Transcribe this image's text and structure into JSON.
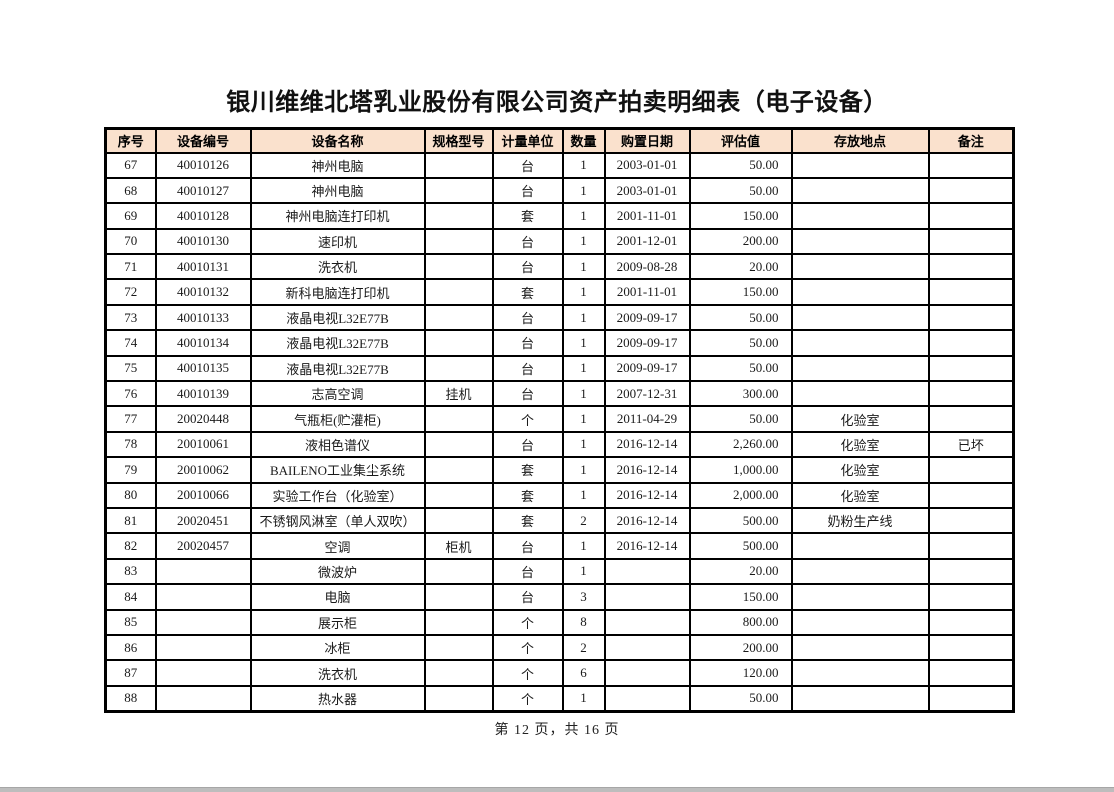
{
  "page": {
    "title": "银川维维北塔乳业股份有限公司资产拍卖明细表（电子设备）",
    "footer": "第 12 页，共 16 页"
  },
  "colors": {
    "header_bg": "#FAE1CD",
    "border": "#000000",
    "text": "#1A1A1A",
    "bottom_bar": "#BDBDBD"
  },
  "table": {
    "headers": [
      "序号",
      "设备编号",
      "设备名称",
      "规格型号",
      "计量单位",
      "数量",
      "购置日期",
      "评估值",
      "存放地点",
      "备注"
    ],
    "rows": [
      [
        "67",
        "40010126",
        "神州电脑",
        "",
        "台",
        "1",
        "2003-01-01",
        "50.00",
        "",
        ""
      ],
      [
        "68",
        "40010127",
        "神州电脑",
        "",
        "台",
        "1",
        "2003-01-01",
        "50.00",
        "",
        ""
      ],
      [
        "69",
        "40010128",
        "神州电脑连打印机",
        "",
        "套",
        "1",
        "2001-11-01",
        "150.00",
        "",
        ""
      ],
      [
        "70",
        "40010130",
        "速印机",
        "",
        "台",
        "1",
        "2001-12-01",
        "200.00",
        "",
        ""
      ],
      [
        "71",
        "40010131",
        "洗衣机",
        "",
        "台",
        "1",
        "2009-08-28",
        "20.00",
        "",
        ""
      ],
      [
        "72",
        "40010132",
        "新科电脑连打印机",
        "",
        "套",
        "1",
        "2001-11-01",
        "150.00",
        "",
        ""
      ],
      [
        "73",
        "40010133",
        "液晶电视L32E77B",
        "",
        "台",
        "1",
        "2009-09-17",
        "50.00",
        "",
        ""
      ],
      [
        "74",
        "40010134",
        "液晶电视L32E77B",
        "",
        "台",
        "1",
        "2009-09-17",
        "50.00",
        "",
        ""
      ],
      [
        "75",
        "40010135",
        "液晶电视L32E77B",
        "",
        "台",
        "1",
        "2009-09-17",
        "50.00",
        "",
        ""
      ],
      [
        "76",
        "40010139",
        "志高空调",
        "挂机",
        "台",
        "1",
        "2007-12-31",
        "300.00",
        "",
        ""
      ],
      [
        "77",
        "20020448",
        "气瓶柜(贮灌柜)",
        "",
        "个",
        "1",
        "2011-04-29",
        "50.00",
        "化验室",
        ""
      ],
      [
        "78",
        "20010061",
        "液相色谱仪",
        "",
        "台",
        "1",
        "2016-12-14",
        "2,260.00",
        "化验室",
        "已坏"
      ],
      [
        "79",
        "20010062",
        "BAILENO工业集尘系统",
        "",
        "套",
        "1",
        "2016-12-14",
        "1,000.00",
        "化验室",
        ""
      ],
      [
        "80",
        "20010066",
        "实验工作台（化验室）",
        "",
        "套",
        "1",
        "2016-12-14",
        "2,000.00",
        "化验室",
        ""
      ],
      [
        "81",
        "20020451",
        "不锈钢风淋室（单人双吹）",
        "",
        "套",
        "2",
        "2016-12-14",
        "500.00",
        "奶粉生产线",
        ""
      ],
      [
        "82",
        "20020457",
        "空调",
        "柜机",
        "台",
        "1",
        "2016-12-14",
        "500.00",
        "",
        ""
      ],
      [
        "83",
        "",
        "微波炉",
        "",
        "台",
        "1",
        "",
        "20.00",
        "",
        ""
      ],
      [
        "84",
        "",
        "电脑",
        "",
        "台",
        "3",
        "",
        "150.00",
        "",
        ""
      ],
      [
        "85",
        "",
        "展示柜",
        "",
        "个",
        "8",
        "",
        "800.00",
        "",
        ""
      ],
      [
        "86",
        "",
        "冰柜",
        "",
        "个",
        "2",
        "",
        "200.00",
        "",
        ""
      ],
      [
        "87",
        "",
        "洗衣机",
        "",
        "个",
        "6",
        "",
        "120.00",
        "",
        ""
      ],
      [
        "88",
        "",
        "热水器",
        "",
        "个",
        "1",
        "",
        "50.00",
        "",
        ""
      ]
    ]
  }
}
